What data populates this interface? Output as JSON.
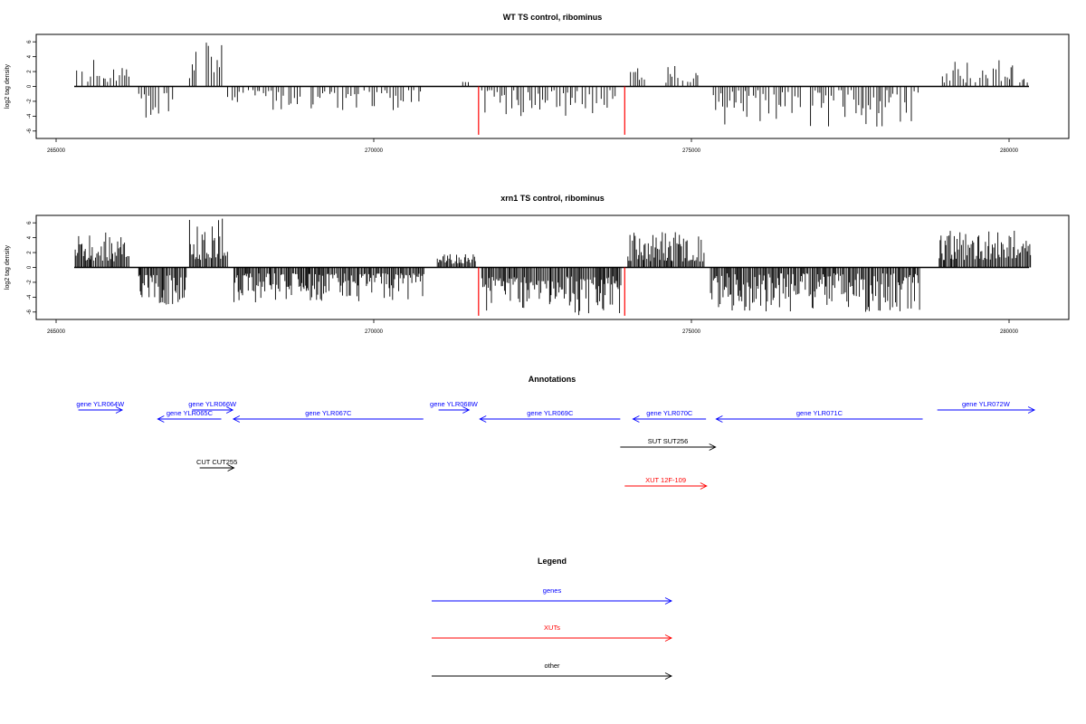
{
  "chart_data": [
    {
      "type": "bar",
      "title": "WT TS control, ribominus",
      "ylabel": "log2 tag density",
      "x_range": [
        264400,
        280400
      ],
      "ylim": [
        -7,
        7
      ],
      "xticks": [
        265000,
        270000,
        275000,
        280000
      ],
      "yticks": [
        6,
        4,
        2,
        0,
        -2,
        -4,
        -6
      ],
      "bar_density": "moderate",
      "segments": [
        {
          "start": 265300,
          "end": 266150,
          "sign": 1,
          "min": 0.6,
          "max": 3.8
        },
        {
          "start": 266300,
          "end": 266850,
          "sign": -1,
          "min": 0.8,
          "max": 5.0
        },
        {
          "start": 267100,
          "end": 267650,
          "sign": 1,
          "min": 1.0,
          "max": 6.0
        },
        {
          "start": 267700,
          "end": 268700,
          "sign": -1,
          "min": 0.5,
          "max": 3.8
        },
        {
          "start": 268750,
          "end": 269700,
          "sign": -1,
          "min": 0.5,
          "max": 3.5
        },
        {
          "start": 269700,
          "end": 270800,
          "sign": -1,
          "min": 0.5,
          "max": 3.5
        },
        {
          "start": 271400,
          "end": 271500,
          "sign": 1,
          "min": 0.5,
          "max": 1.5
        },
        {
          "start": 271700,
          "end": 273800,
          "sign": -1,
          "min": 0.5,
          "max": 4.0
        },
        {
          "start": 274000,
          "end": 274300,
          "sign": 1,
          "min": 0.8,
          "max": 2.5
        },
        {
          "start": 274600,
          "end": 275100,
          "sign": 1,
          "min": 0.5,
          "max": 2.8
        },
        {
          "start": 275300,
          "end": 278600,
          "sign": -1,
          "min": 0.5,
          "max": 5.5
        },
        {
          "start": 278950,
          "end": 280350,
          "sign": 1,
          "min": 0.5,
          "max": 3.6
        }
      ],
      "highlight_x": [
        271650,
        273950
      ],
      "highlight_y": -6.5,
      "highlight_color": "#ff0000"
    },
    {
      "type": "bar",
      "title": "xrn1 TS control, ribominus",
      "ylabel": "log2 tag density",
      "x_range": [
        264400,
        280400
      ],
      "ylim": [
        -7,
        7
      ],
      "xticks": [
        265000,
        270000,
        275000,
        280000
      ],
      "yticks": [
        6,
        4,
        2,
        0,
        -2,
        -4,
        -6
      ],
      "bar_density": "dense",
      "segments": [
        {
          "start": 265300,
          "end": 266150,
          "sign": 1,
          "min": 0.8,
          "max": 5.0
        },
        {
          "start": 266300,
          "end": 267050,
          "sign": -1,
          "min": 1.0,
          "max": 5.0
        },
        {
          "start": 267100,
          "end": 267700,
          "sign": 1,
          "min": 1.0,
          "max": 6.6
        },
        {
          "start": 267800,
          "end": 270800,
          "sign": -1,
          "min": 0.8,
          "max": 4.8
        },
        {
          "start": 271000,
          "end": 271600,
          "sign": 1,
          "min": 0.5,
          "max": 1.8
        },
        {
          "start": 271700,
          "end": 273900,
          "sign": -1,
          "min": 1.2,
          "max": 6.5
        },
        {
          "start": 274000,
          "end": 275200,
          "sign": 1,
          "min": 0.8,
          "max": 4.8
        },
        {
          "start": 275300,
          "end": 278600,
          "sign": -1,
          "min": 0.8,
          "max": 6.0
        },
        {
          "start": 278900,
          "end": 280350,
          "sign": 1,
          "min": 1.0,
          "max": 5.0
        }
      ],
      "highlight_x": [
        271650,
        273950
      ],
      "highlight_y": -6.5,
      "highlight_color": "#ff0000"
    }
  ],
  "annotations": {
    "title": "Annotations",
    "colors": {
      "gene": "#0000ff",
      "xut": "#ff0000",
      "other": "#000000"
    },
    "items": [
      {
        "label": "gene YLR064W",
        "kind": "gene",
        "start": 265350,
        "end": 266040,
        "dir": "right",
        "row": 1
      },
      {
        "label": "gene YLR065C",
        "kind": "gene",
        "start": 266600,
        "end": 267600,
        "dir": "left",
        "row": 2
      },
      {
        "label": "gene YLR066W",
        "kind": "gene",
        "start": 267140,
        "end": 267780,
        "dir": "right",
        "row": 1
      },
      {
        "label": "gene YLR067C",
        "kind": "gene",
        "start": 267790,
        "end": 270780,
        "dir": "left",
        "row": 2
      },
      {
        "label": "gene YLR068W",
        "kind": "gene",
        "start": 271020,
        "end": 271500,
        "dir": "right",
        "row": 1
      },
      {
        "label": "gene YLR069C",
        "kind": "gene",
        "start": 271670,
        "end": 273880,
        "dir": "left",
        "row": 2
      },
      {
        "label": "gene YLR070C",
        "kind": "gene",
        "start": 274080,
        "end": 275230,
        "dir": "left",
        "row": 2
      },
      {
        "label": "gene YLR071C",
        "kind": "gene",
        "start": 275390,
        "end": 278640,
        "dir": "left",
        "row": 2
      },
      {
        "label": "gene YLR072W",
        "kind": "gene",
        "start": 278870,
        "end": 280400,
        "dir": "right",
        "row": 1
      },
      {
        "label": "SUT SUT256",
        "kind": "other",
        "start": 273880,
        "end": 275380,
        "dir": "right",
        "row": 3
      },
      {
        "label": "CUT CUT255",
        "kind": "other",
        "start": 267260,
        "end": 267800,
        "dir": "right",
        "row": 4
      },
      {
        "label": "XUT 12F-109",
        "kind": "xut",
        "start": 273950,
        "end": 275240,
        "dir": "right",
        "row": 5
      }
    ]
  },
  "legend": {
    "title": "Legend",
    "items": [
      {
        "label": "genes",
        "color": "#0000ff"
      },
      {
        "label": "XUTs",
        "color": "#ff0000"
      },
      {
        "label": "other",
        "color": "#000000"
      }
    ]
  }
}
